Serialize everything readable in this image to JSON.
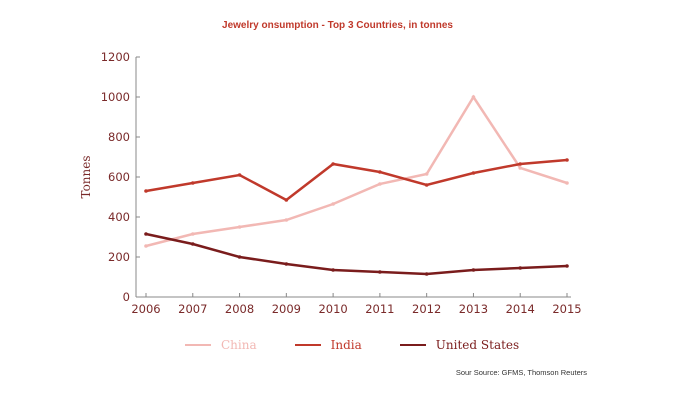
{
  "chart_data": {
    "type": "line",
    "title": "Jewelry onsumption - Top 3 Countries, in tonnes",
    "xlabel": "",
    "ylabel": "Tonnes",
    "ylim": [
      0,
      1200
    ],
    "yticks": [
      0,
      200,
      400,
      600,
      800,
      1000,
      1200
    ],
    "x": [
      "2006",
      "2007",
      "2008",
      "2009",
      "2010",
      "2011",
      "2012",
      "2013",
      "2014",
      "2015"
    ],
    "grid": false,
    "legend_position": "bottom",
    "series": [
      {
        "name": "China",
        "color": "#f2b8b4",
        "values": [
          255,
          315,
          350,
          385,
          465,
          565,
          615,
          1000,
          645,
          570
        ]
      },
      {
        "name": "India",
        "color": "#c0392b",
        "values": [
          530,
          570,
          610,
          485,
          665,
          625,
          560,
          620,
          665,
          685
        ]
      },
      {
        "name": "United States",
        "color": "#7a1c1c",
        "values": [
          315,
          265,
          200,
          165,
          135,
          125,
          115,
          135,
          145,
          155
        ]
      }
    ],
    "source": "Sour Source: GFMS, Thomson Reuters"
  }
}
